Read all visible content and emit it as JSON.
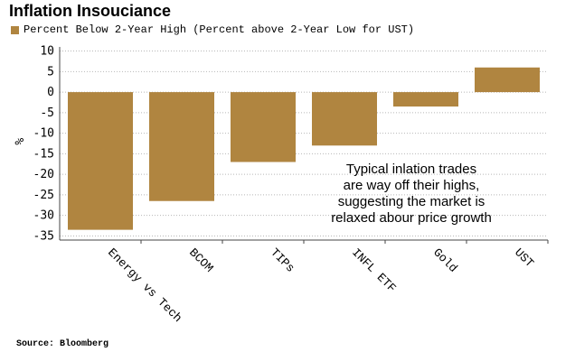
{
  "title": "Inflation Insouciance",
  "legend": {
    "label": "Percent Below 2-Year High (Percent above 2-Year Low for UST)",
    "color": "#b08540"
  },
  "source": "Source: Bloomberg",
  "chart_data": {
    "type": "bar",
    "title": "Inflation Insouciance",
    "ylabel": "%",
    "xlabel": "",
    "ylim": [
      -36,
      11
    ],
    "yticks": [
      10,
      5,
      0,
      -5,
      -10,
      -15,
      -20,
      -25,
      -30,
      -35
    ],
    "grid": true,
    "categories": [
      "Energy vs Tech",
      "BCOM",
      "TIPs",
      "INFL ETF",
      "Gold",
      "UST"
    ],
    "series": [
      {
        "name": "Percent Below 2-Year High (Percent above 2-Year Low for UST)",
        "values": [
          -33.5,
          -26.5,
          -17,
          -13,
          -3.5,
          6
        ]
      }
    ],
    "annotation": [
      "Typical inlation trades",
      "are way off their highs,",
      "suggesting the market is",
      "relaxed abour price growth"
    ]
  }
}
